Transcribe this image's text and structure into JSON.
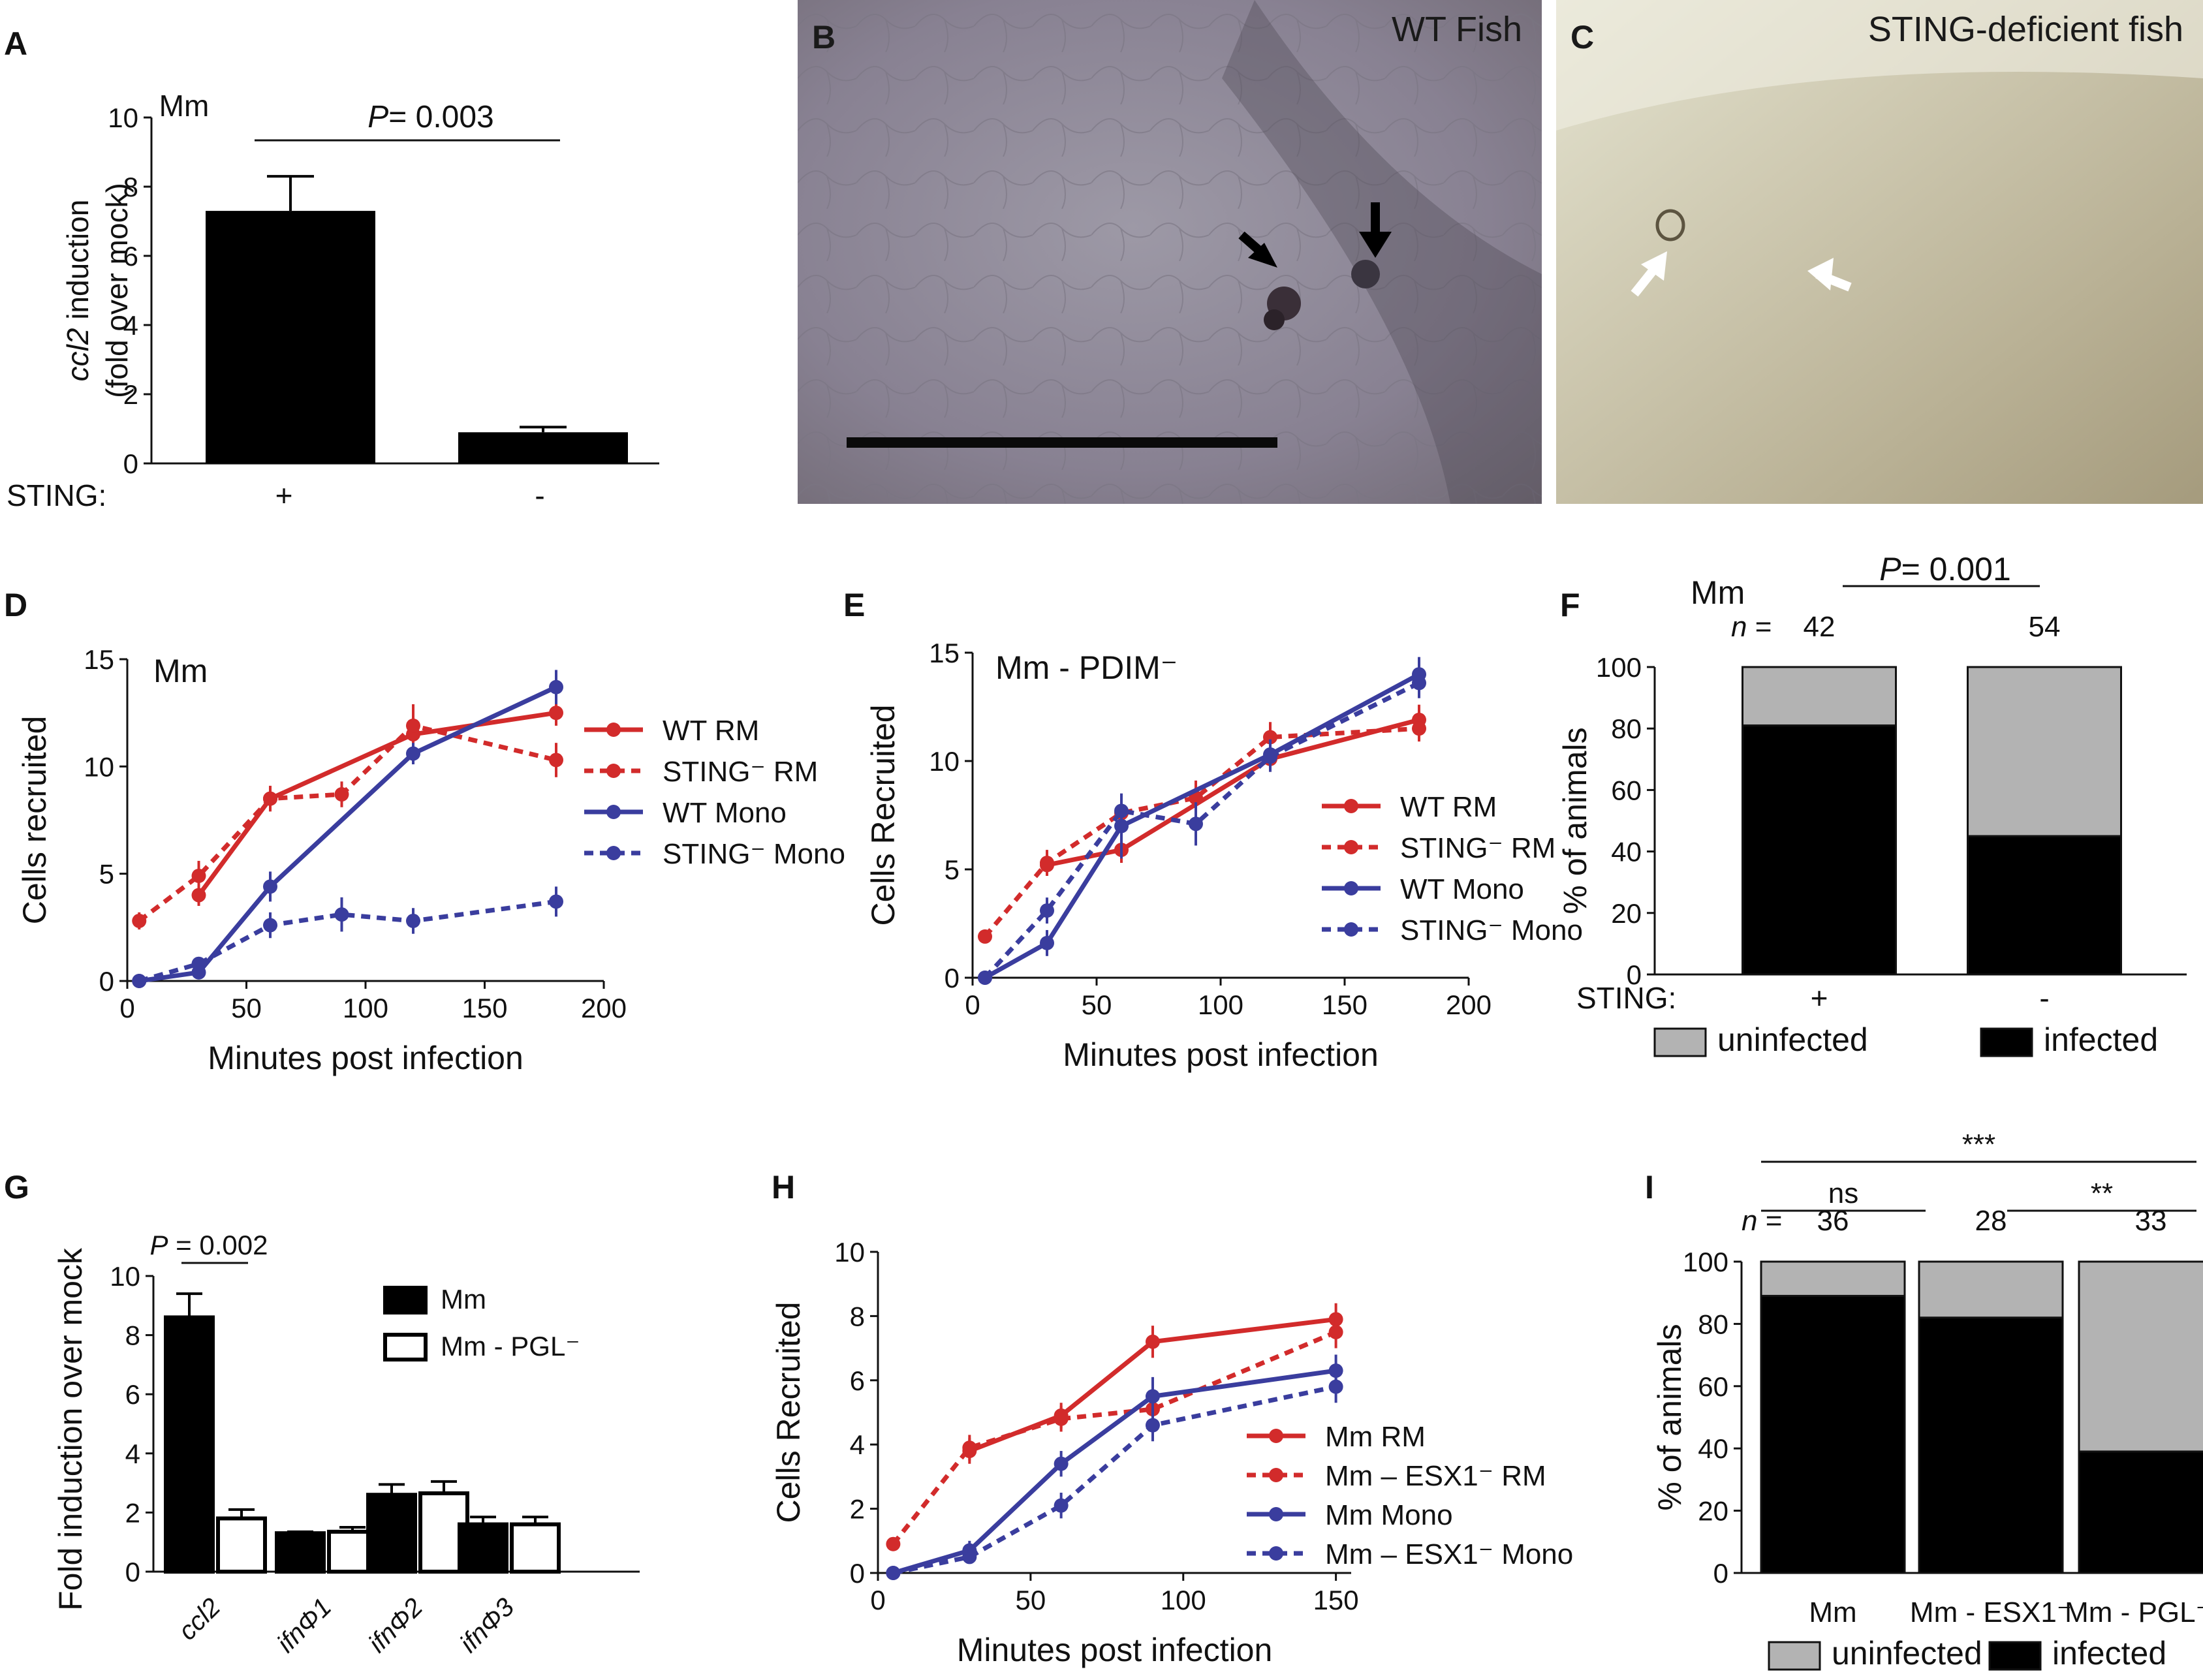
{
  "panels": {
    "A": "A",
    "B": "B",
    "C": "C",
    "D": "D",
    "E": "E",
    "F": "F",
    "G": "G",
    "H": "H",
    "I": "I"
  },
  "images": {
    "B": {
      "title": "WT Fish",
      "bg": "#8e8793"
    },
    "C": {
      "title": "STING-deficient fish",
      "bg": "#c9c3a9"
    }
  },
  "colors": {
    "red": "#d22b2b",
    "blue": "#3a3d9e",
    "black": "#000000",
    "gray": "#b3b3b3"
  },
  "chart_data": [
    {
      "panel": "A",
      "type": "bar",
      "ylabel_italic": "ccl2",
      "ylabel_rest": " induction",
      "ylabel2": "(fold over mock)",
      "ylim": [
        0,
        10
      ],
      "yticks": [
        "0",
        "2",
        "4",
        "6",
        "8",
        "10"
      ],
      "group_label": "STING:",
      "categories": [
        "+",
        "-"
      ],
      "values": [
        7.3,
        0.9
      ],
      "errors": [
        1.0,
        0.15
      ],
      "annotation": "Mm",
      "pvalue_italic": "P",
      "pvalue_rest": "= 0.003"
    },
    {
      "panel": "D",
      "type": "line",
      "title": "Mm",
      "xlabel": "Minutes post infection",
      "ylabel": "Cells recruited",
      "xlim": [
        0,
        200
      ],
      "ylim": [
        0,
        15
      ],
      "xticks": [
        "0",
        "50",
        "100",
        "150",
        "200"
      ],
      "yticks": [
        "0",
        "5",
        "10",
        "15"
      ],
      "series": [
        {
          "name": "WT RM",
          "color": "#d22b2b",
          "dashed": false,
          "x": [
            30,
            60,
            120,
            180
          ],
          "y": [
            4.0,
            8.5,
            11.5,
            12.5
          ],
          "err": [
            0.5,
            0.6,
            0.7,
            0.6
          ]
        },
        {
          "name": "STING⁻ RM",
          "color": "#d22b2b",
          "dashed": true,
          "x": [
            5,
            30,
            60,
            90,
            120,
            180
          ],
          "y": [
            2.8,
            4.9,
            8.5,
            8.7,
            11.9,
            10.3
          ],
          "err": [
            0.4,
            0.7,
            0.5,
            0.6,
            1.0,
            0.8
          ]
        },
        {
          "name": "WT Mono",
          "color": "#3a3d9e",
          "dashed": false,
          "x": [
            5,
            30,
            60,
            120,
            180
          ],
          "y": [
            0.0,
            0.4,
            4.4,
            10.6,
            13.7
          ],
          "err": [
            0.05,
            0.3,
            0.7,
            0.5,
            0.8
          ]
        },
        {
          "name": "STING⁻ Mono",
          "color": "#3a3d9e",
          "dashed": true,
          "x": [
            5,
            30,
            60,
            90,
            120,
            180
          ],
          "y": [
            0.0,
            0.8,
            2.6,
            3.1,
            2.8,
            3.7
          ],
          "err": [
            0.05,
            0.3,
            0.6,
            0.8,
            0.6,
            0.7
          ]
        }
      ]
    },
    {
      "panel": "E",
      "type": "line",
      "title": "Mm - PDIM⁻",
      "xlabel": "Minutes post infection",
      "ylabel": "Cells Recruited",
      "xlim": [
        0,
        200
      ],
      "ylim": [
        0,
        15
      ],
      "xticks": [
        "0",
        "50",
        "100",
        "150",
        "200"
      ],
      "yticks": [
        "0",
        "5",
        "10",
        "15"
      ],
      "series": [
        {
          "name": "WT RM",
          "color": "#d22b2b",
          "dashed": false,
          "x": [
            30,
            60,
            120,
            180
          ],
          "y": [
            5.2,
            5.9,
            10.1,
            11.9
          ],
          "err": [
            0.5,
            0.6,
            0.6,
            0.7
          ]
        },
        {
          "name": "STING⁻ RM",
          "color": "#d22b2b",
          "dashed": true,
          "x": [
            5,
            30,
            60,
            90,
            120,
            180
          ],
          "y": [
            1.9,
            5.3,
            7.6,
            8.3,
            11.1,
            11.5
          ],
          "err": [
            0.3,
            0.6,
            0.6,
            0.8,
            0.7,
            0.6
          ]
        },
        {
          "name": "WT Mono",
          "color": "#3a3d9e",
          "dashed": false,
          "x": [
            5,
            30,
            60,
            120,
            180
          ],
          "y": [
            0.0,
            1.6,
            7.0,
            10.3,
            14.0
          ],
          "err": [
            0.05,
            0.6,
            1.5,
            0.7,
            0.8
          ]
        },
        {
          "name": "STING⁻ Mono",
          "color": "#3a3d9e",
          "dashed": true,
          "x": [
            5,
            30,
            60,
            90,
            120,
            180
          ],
          "y": [
            0.0,
            3.1,
            7.7,
            7.1,
            10.2,
            13.6
          ],
          "err": [
            0.05,
            0.6,
            0.8,
            1.0,
            0.7,
            0.7
          ]
        }
      ]
    },
    {
      "panel": "F",
      "type": "bar",
      "stacked": true,
      "title": "Mm",
      "ylabel": "% of animals",
      "ylim": [
        0,
        100
      ],
      "yticks": [
        "0",
        "20",
        "40",
        "60",
        "80",
        "100"
      ],
      "group_label": "STING:",
      "categories": [
        "+",
        "-"
      ],
      "n_label": "n",
      "n_eq": " =",
      "n_values": [
        "42",
        "54"
      ],
      "infected": [
        81,
        45
      ],
      "legend": [
        "uninfected",
        "infected"
      ],
      "pvalue_italic": "P",
      "pvalue_rest": "= 0.001"
    },
    {
      "panel": "G",
      "type": "bar",
      "ylabel": "Fold induction over mock",
      "ylim": [
        0,
        10
      ],
      "yticks": [
        "0",
        "2",
        "4",
        "6",
        "8",
        "10"
      ],
      "categories": [
        "ccl2",
        "ifnΦ1",
        "ifnΦ2",
        "ifnΦ3"
      ],
      "series": [
        {
          "name": "Mm",
          "fill": "#000000",
          "values": [
            8.6,
            1.3,
            2.6,
            1.6
          ],
          "err": [
            0.8,
            0.05,
            0.35,
            0.25
          ]
        },
        {
          "name": "Mm - PGL⁻",
          "fill": "#ffffff",
          "values": [
            1.8,
            1.35,
            2.65,
            1.6
          ],
          "err": [
            0.3,
            0.15,
            0.4,
            0.25
          ]
        }
      ],
      "pvalue_italic": "P",
      "pvalue_rest": " = 0.002"
    },
    {
      "panel": "H",
      "type": "line",
      "xlabel": "Minutes post infection",
      "ylabel": "Cells Recruited",
      "xlim": [
        0,
        155
      ],
      "ylim": [
        0,
        10
      ],
      "xticks": [
        "0",
        "50",
        "100",
        "150"
      ],
      "yticks": [
        "0",
        "2",
        "4",
        "6",
        "8",
        "10"
      ],
      "series": [
        {
          "name": "Mm RM",
          "color": "#d22b2b",
          "dashed": false,
          "x": [
            30,
            60,
            90,
            150
          ],
          "y": [
            3.8,
            4.9,
            7.2,
            7.9
          ],
          "err": [
            0.4,
            0.4,
            0.5,
            0.5
          ]
        },
        {
          "name": "Mm – ESX1⁻ RM",
          "color": "#d22b2b",
          "dashed": true,
          "x": [
            5,
            30,
            60,
            90,
            150
          ],
          "y": [
            0.9,
            3.9,
            4.8,
            5.1,
            7.5
          ],
          "err": [
            0.2,
            0.4,
            0.4,
            0.5,
            0.5
          ]
        },
        {
          "name": "Mm Mono",
          "color": "#3a3d9e",
          "dashed": false,
          "x": [
            5,
            30,
            60,
            90,
            150
          ],
          "y": [
            0.0,
            0.7,
            3.4,
            5.5,
            6.3
          ],
          "err": [
            0.05,
            0.3,
            0.4,
            0.6,
            0.5
          ]
        },
        {
          "name": "Mm – ESX1⁻ Mono",
          "color": "#3a3d9e",
          "dashed": true,
          "x": [
            5,
            30,
            60,
            90,
            150
          ],
          "y": [
            0.0,
            0.5,
            2.1,
            4.6,
            5.8
          ],
          "err": [
            0.05,
            0.2,
            0.4,
            0.5,
            0.5
          ]
        }
      ]
    },
    {
      "panel": "I",
      "type": "bar",
      "stacked": true,
      "ylabel": "% of animals",
      "ylim": [
        0,
        100
      ],
      "yticks": [
        "0",
        "20",
        "40",
        "60",
        "80",
        "100"
      ],
      "categories": [
        "Mm",
        "Mm - ESX1⁻",
        "Mm - PGL⁻"
      ],
      "n_label": "n",
      "n_eq": " =",
      "n_values": [
        "36",
        "28",
        "33"
      ],
      "infected": [
        89,
        82,
        39
      ],
      "legend": [
        "uninfected",
        "infected"
      ],
      "significance": [
        {
          "label": "***",
          "from": 0,
          "to": 2
        },
        {
          "label": "ns",
          "from": 0,
          "to": 1
        },
        {
          "label": "**",
          "from": 1,
          "to": 2
        }
      ]
    }
  ]
}
